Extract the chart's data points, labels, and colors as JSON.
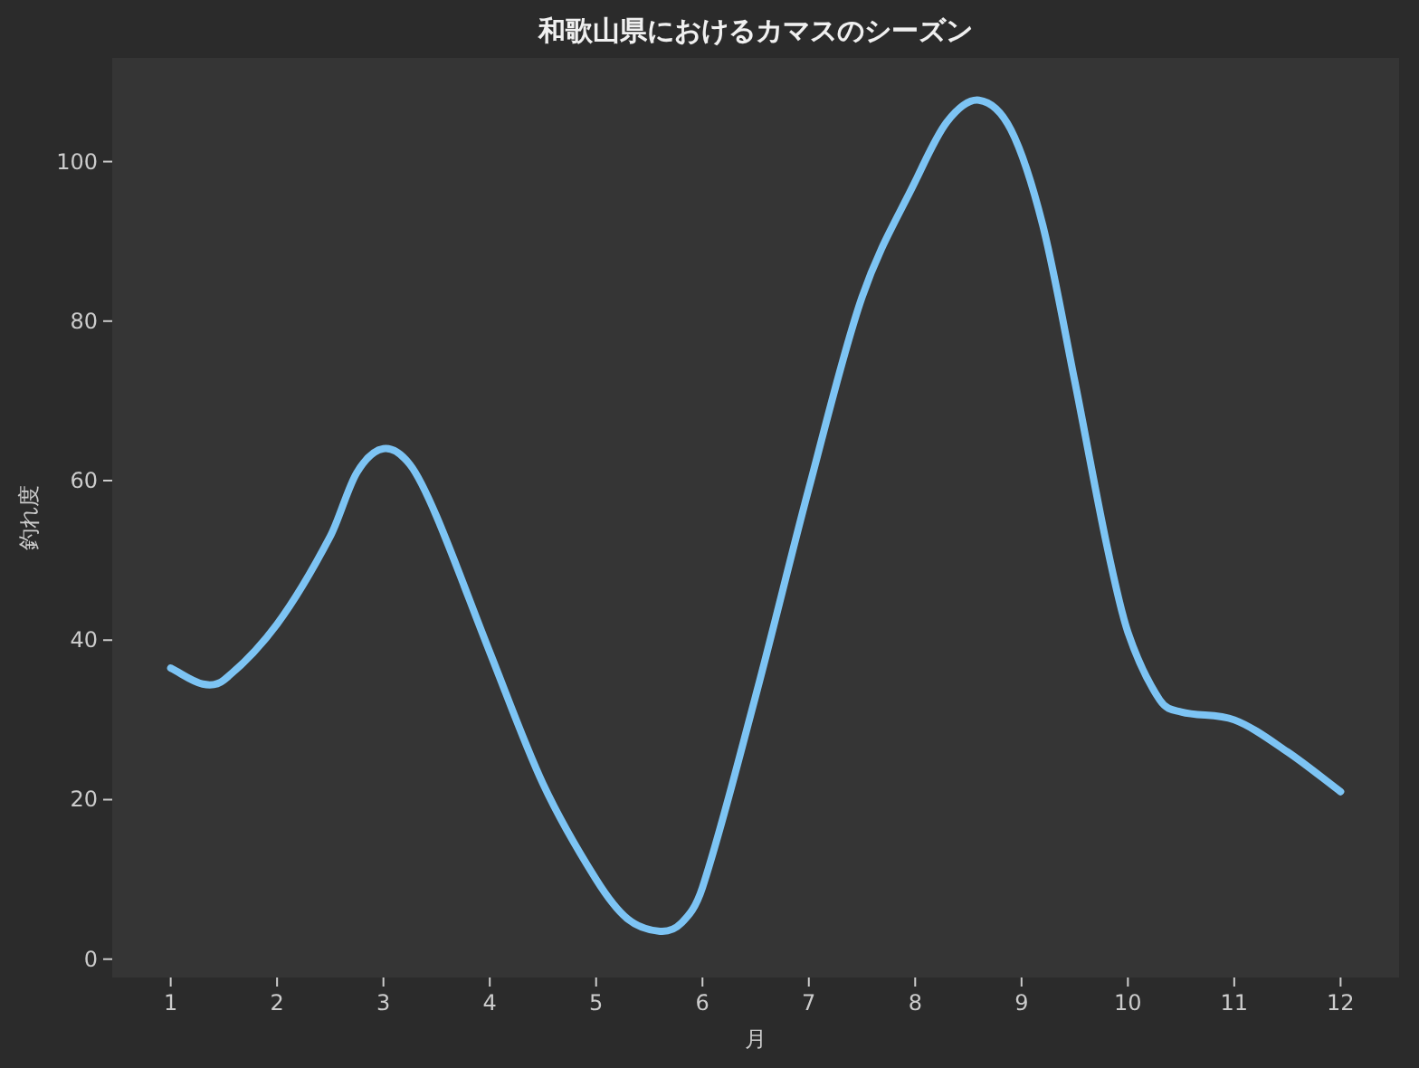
{
  "chart_data": {
    "type": "line",
    "title": "和歌山県におけるカマスのシーズン",
    "xlabel": "月",
    "ylabel": "釣れ度",
    "x": [
      1,
      1.3,
      1.5,
      2,
      2.5,
      2.75,
      3,
      3.25,
      3.5,
      4,
      4.5,
      5,
      5.3,
      5.6,
      5.8,
      6,
      6.5,
      7,
      7.5,
      8,
      8.3,
      8.6,
      8.9,
      9.2,
      9.5,
      9.8,
      10,
      10.3,
      10.5,
      11,
      11.5,
      12
    ],
    "series": [
      {
        "color": "#7dc4f4",
        "values": [
          36.5,
          34.5,
          35,
          42,
          53,
          61,
          64,
          62,
          55.5,
          38.5,
          22,
          10,
          5,
          3.5,
          4.5,
          9,
          33,
          59,
          83,
          97.5,
          105,
          107.7,
          104,
          92,
          72.5,
          52,
          41,
          32.5,
          31,
          30,
          26,
          21
        ]
      }
    ],
    "xlim": [
      0.45,
      12.55
    ],
    "ylim": [
      -2.3,
      113
    ],
    "xticks": [
      1,
      2,
      3,
      4,
      5,
      6,
      7,
      8,
      9,
      10,
      11,
      12
    ],
    "yticks": [
      0,
      20,
      40,
      60,
      80,
      100
    ],
    "grid": false,
    "marker": "none",
    "line_style": "solid"
  }
}
